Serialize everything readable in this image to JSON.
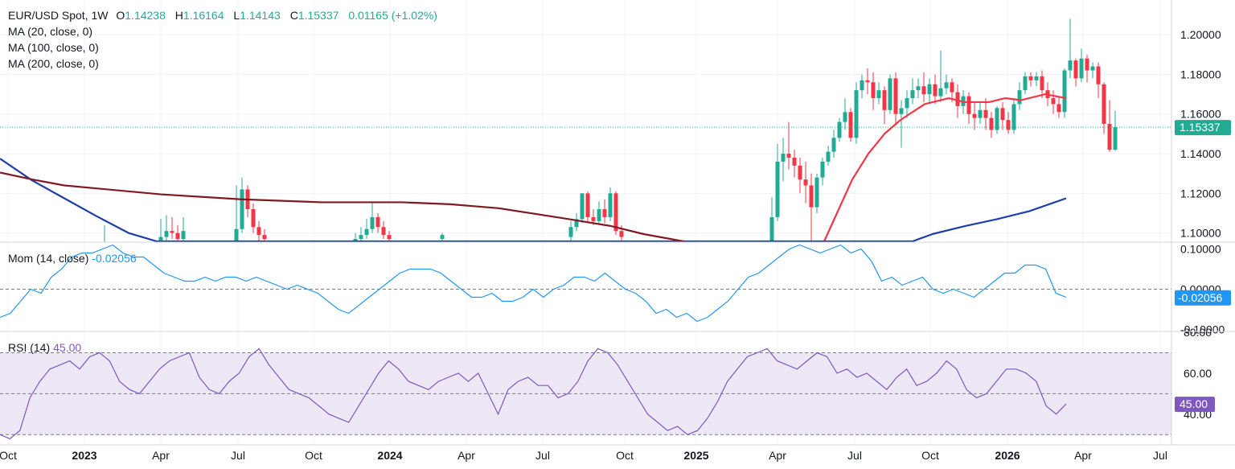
{
  "legend": {
    "symbol": "EUR/USD Spot, 1W",
    "open_key": "O",
    "open": "1.14238",
    "high_key": "H",
    "high": "1.16164",
    "low_key": "L",
    "low": "1.14143",
    "close_key": "C",
    "close": "1.15337",
    "change": "0.01165 (+1.02%)",
    "ma20": "MA (20, close, 0)",
    "ma100": "MA (100, close, 0)",
    "ma200": "MA (200, close, 0)",
    "mom_label": "Mom (14, close)",
    "mom_value": "-0.02056",
    "rsi_label": "RSI (14)",
    "rsi_value": "45.00"
  },
  "colors": {
    "up": "#22ab94",
    "down": "#f23645",
    "ma20": "#f23645",
    "ma100": "#1e3ea8",
    "ma200": "#801922",
    "mom": "#2196f3",
    "rsi": "#7e57c2",
    "rsi_band": "#ede7f6"
  },
  "chart_data": [
    {
      "type": "candlestick",
      "title": "EUR/USD Spot, 1W",
      "price_axis": [
        "1.20000",
        "1.18000",
        "1.16000",
        "1.14000",
        "1.12000",
        "1.10000"
      ],
      "ylim": [
        1.0958,
        1.2175
      ],
      "last_price": "1.15337",
      "time_axis": [
        "Oct",
        "2023",
        "Apr",
        "Jul",
        "Oct",
        "2024",
        "Apr",
        "Jul",
        "Oct",
        "2025",
        "Apr",
        "Jul",
        "Oct",
        "2026",
        "Apr",
        "Jul"
      ],
      "series": [
        {
          "name": "MA (20, close, 0)",
          "points": [
            [
              1025,
              1.0958
            ],
            [
              1060,
              1.127
            ],
            [
              1080,
              1.14
            ],
            [
              1100,
              1.15
            ],
            [
              1120,
              1.157
            ],
            [
              1150,
              1.165
            ],
            [
              1180,
              1.168
            ],
            [
              1200,
              1.166
            ],
            [
              1230,
              1.166
            ],
            [
              1250,
              1.168
            ],
            [
              1270,
              1.167
            ],
            [
              1300,
              1.17
            ],
            [
              1326,
              1.168
            ]
          ]
        },
        {
          "name": "MA (100, close, 0)",
          "points": [
            [
              0,
              1.1375
            ],
            [
              40,
              1.1265
            ],
            [
              80,
              1.1175
            ],
            [
              120,
              1.1085
            ],
            [
              160,
              1.1
            ],
            [
              195,
              1.0958
            ],
            [
              1135,
              1.0958
            ],
            [
              1160,
              1.0995
            ],
            [
              1200,
              1.1035
            ],
            [
              1240,
              1.107
            ],
            [
              1280,
              1.111
            ],
            [
              1326,
              1.1175
            ]
          ]
        },
        {
          "name": "MA (200, close, 0)",
          "points": [
            [
              0,
              1.1305
            ],
            [
              40,
              1.127
            ],
            [
              80,
              1.124
            ],
            [
              120,
              1.1225
            ],
            [
              200,
              1.1195
            ],
            [
              300,
              1.117
            ],
            [
              400,
              1.1155
            ],
            [
              500,
              1.1155
            ],
            [
              560,
              1.1145
            ],
            [
              620,
              1.1125
            ],
            [
              700,
              1.1075
            ],
            [
              760,
              1.1035
            ],
            [
              800,
              1.0995
            ],
            [
              850,
              1.0958
            ]
          ]
        }
      ],
      "candles_visible_clusters": [
        "2022-late",
        "2023-Apr",
        "2023-Jul",
        "2024-Jan/Feb",
        "2024-Aug/Sep",
        "2025-Apr onward",
        "2026-Jan/Mar"
      ]
    },
    {
      "type": "line",
      "title": "Mom (14, close)",
      "price_axis": [
        "0.10000",
        "0.00000",
        "-0.10000"
      ],
      "ylim": [
        -0.105,
        0.115
      ],
      "last_value": "-0.02056",
      "series": [
        {
          "name": "Mom (14, close)",
          "values": [
            -0.07,
            -0.06,
            -0.03,
            0.0,
            -0.01,
            0.03,
            0.05,
            0.08,
            0.09,
            0.09,
            0.1,
            0.11,
            0.09,
            0.08,
            0.08,
            0.06,
            0.04,
            0.03,
            0.02,
            0.02,
            0.03,
            0.02,
            0.03,
            0.03,
            0.02,
            0.03,
            0.02,
            0.01,
            0.0,
            0.01,
            0.0,
            -0.01,
            -0.03,
            -0.05,
            -0.06,
            -0.04,
            -0.02,
            0.0,
            0.02,
            0.04,
            0.05,
            0.05,
            0.05,
            0.04,
            0.02,
            0.0,
            -0.02,
            -0.02,
            -0.01,
            -0.03,
            -0.03,
            -0.02,
            0.0,
            -0.02,
            0.0,
            0.01,
            0.03,
            0.03,
            0.02,
            0.04,
            0.02,
            0.0,
            -0.01,
            -0.03,
            -0.06,
            -0.05,
            -0.07,
            -0.06,
            -0.08,
            -0.07,
            -0.05,
            -0.03,
            0.0,
            0.03,
            0.04,
            0.06,
            0.08,
            0.1,
            0.11,
            0.1,
            0.09,
            0.1,
            0.11,
            0.09,
            0.1,
            0.07,
            0.02,
            0.03,
            0.01,
            0.02,
            0.03,
            0.0,
            -0.01,
            0.0,
            -0.01,
            -0.02,
            0.0,
            0.02,
            0.04,
            0.04,
            0.06,
            0.06,
            0.05,
            -0.01,
            -0.02
          ]
        }
      ]
    },
    {
      "type": "line",
      "title": "RSI (14)",
      "price_axis": [
        "80.00",
        "60.00",
        "40.00"
      ],
      "ylim": [
        25,
        80
      ],
      "band": [
        30,
        70
      ],
      "last_value": "45.00",
      "series": [
        {
          "name": "RSI (14)",
          "values": [
            30,
            28,
            32,
            48,
            56,
            62,
            64,
            66,
            62,
            68,
            70,
            66,
            56,
            52,
            50,
            56,
            62,
            66,
            68,
            70,
            58,
            52,
            50,
            56,
            60,
            68,
            72,
            64,
            58,
            52,
            50,
            48,
            44,
            40,
            38,
            36,
            44,
            52,
            60,
            66,
            62,
            56,
            54,
            52,
            56,
            58,
            60,
            56,
            60,
            50,
            40,
            52,
            56,
            58,
            54,
            54,
            48,
            50,
            56,
            66,
            72,
            70,
            64,
            56,
            48,
            40,
            36,
            32,
            34,
            30,
            32,
            38,
            46,
            56,
            62,
            68,
            70,
            72,
            66,
            64,
            62,
            66,
            70,
            68,
            60,
            62,
            58,
            60,
            56,
            52,
            58,
            62,
            54,
            56,
            60,
            66,
            62,
            52,
            48,
            50,
            56,
            62,
            62,
            60,
            56,
            44,
            40,
            45
          ]
        }
      ]
    }
  ]
}
